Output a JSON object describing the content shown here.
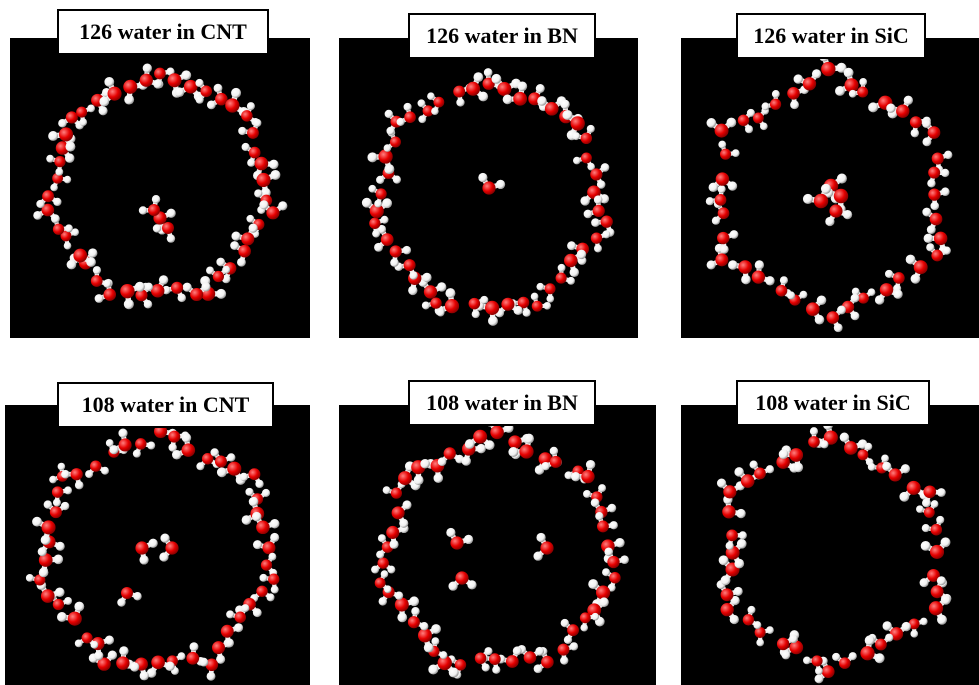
{
  "figure": {
    "panels": [
      {
        "label": "126 water in CNT",
        "ring_shape": "heptagon-rounded",
        "center_cluster": "water-cluster-small"
      },
      {
        "label": "126 water in BN",
        "ring_shape": "heptagon",
        "center_cluster": "single-water"
      },
      {
        "label": "126 water in SiC",
        "ring_shape": "hexagon",
        "center_cluster": "water-cluster-star"
      },
      {
        "label": "108 water in CNT",
        "ring_shape": "heptagon-rounded",
        "center_cluster": "water-pair"
      },
      {
        "label": "108 water in BN",
        "ring_shape": "heptagon",
        "center_cluster": "water-pair-scattered"
      },
      {
        "label": "108 water in SiC",
        "ring_shape": "hexagon",
        "center_cluster": "empty"
      }
    ],
    "colors": {
      "background": "#000000",
      "oxygen": "#e60000",
      "hydrogen": "#f0f0f0",
      "label_background": "#ffffff",
      "label_border": "#000000"
    }
  }
}
